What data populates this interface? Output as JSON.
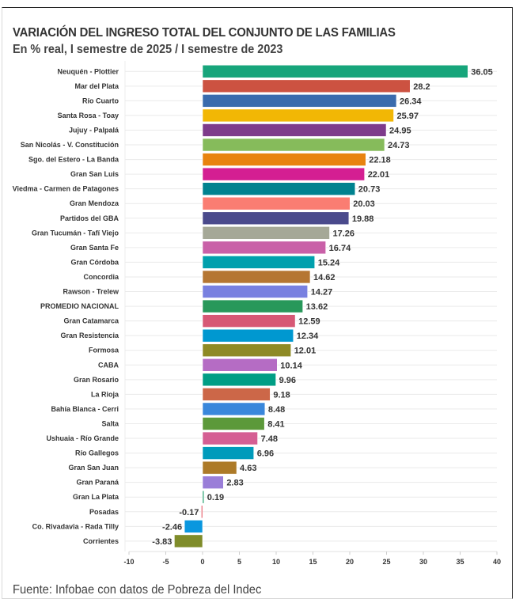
{
  "header": {
    "title": "VARIACIÓN DEL INGRESO TOTAL DEL CONJUNTO DE LAS FAMILIAS",
    "subtitle": "En % real, I semestre de 2025 / I semestre de 2023"
  },
  "footer": {
    "source": "Fuente: Infobae con datos de Pobreza del Indec"
  },
  "chart_data": {
    "type": "bar",
    "orientation": "horizontal",
    "title": "VARIACIÓN DEL INGRESO TOTAL DEL CONJUNTO DE LAS FAMILIAS",
    "subtitle": "En % real, I semestre de 2025 / I semestre de 2023",
    "xlabel": "",
    "ylabel": "",
    "xlim": [
      -10,
      40
    ],
    "xticks": [
      -10,
      -5,
      0,
      5,
      10,
      15,
      20,
      25,
      30,
      35,
      40
    ],
    "grid": "horizontal-rows",
    "legend": "none",
    "categories": [
      "Neuquén - Plottier",
      "Mar del Plata",
      "Río Cuarto",
      "Santa Rosa - Toay",
      "Jujuy - Palpalá",
      "San Nicolás - V. Constitución",
      "Sgo. del Estero - La Banda",
      "Gran San Luis",
      "Viedma - Carmen de Patagones",
      "Gran Mendoza",
      "Partidos del GBA",
      "Gran Tucumán - Tafí Viejo",
      "Gran Santa Fe",
      "Gran Córdoba",
      "Concordia",
      "Rawson - Trelew",
      "PROMEDIO NACIONAL",
      "Gran Catamarca",
      "Gran Resistencia",
      "Formosa",
      "CABA",
      "Gran Rosario",
      "La Rioja",
      "Bahía Blanca - Cerri",
      "Salta",
      "Ushuaia - Río Grande",
      "Río Gallegos",
      "Gran San Juan",
      "Gran Paraná",
      "Gran La Plata",
      "Posadas",
      "Co. Rivadavia - Rada Tilly",
      "Corrientes"
    ],
    "values": [
      36.05,
      28.2,
      26.34,
      25.97,
      24.95,
      24.73,
      22.18,
      22.01,
      20.73,
      20.03,
      19.88,
      17.26,
      16.74,
      15.24,
      14.62,
      14.27,
      13.62,
      12.59,
      12.34,
      12.01,
      10.14,
      9.96,
      9.18,
      8.48,
      8.41,
      7.48,
      6.96,
      4.63,
      2.83,
      0.19,
      -0.17,
      -2.46,
      -3.83
    ],
    "value_labels": [
      "36.05",
      "28.2",
      "26.34",
      "25.97",
      "24.95",
      "24.73",
      "22.18",
      "22.01",
      "20.73",
      "20.03",
      "19.88",
      "17.26",
      "16.74",
      "15.24",
      "14.62",
      "14.27",
      "13.62",
      "12.59",
      "12.34",
      "12.01",
      "10.14",
      "9.96",
      "9.18",
      "8.48",
      "8.41",
      "7.48",
      "6.96",
      "4.63",
      "2.83",
      "0.19",
      "-0.17",
      "-2.46",
      "-3.83"
    ],
    "colors": [
      "#17a57b",
      "#cc5241",
      "#3a6bad",
      "#f2b705",
      "#7e3b8b",
      "#86bb5b",
      "#e8830f",
      "#d41f92",
      "#00828f",
      "#fa7d72",
      "#4a4a8c",
      "#a5a897",
      "#c960a8",
      "#00a0ad",
      "#b57632",
      "#7880e0",
      "#28985a",
      "#d75875",
      "#0098d0",
      "#8e8a25",
      "#b56cc4",
      "#009e85",
      "#cc6748",
      "#3a87db",
      "#5c993a",
      "#d55f93",
      "#009bbb",
      "#ad7a28",
      "#9a7ed8",
      "#1e9e6a",
      "#e34c59",
      "#0a97df",
      "#7f8c2a"
    ]
  }
}
